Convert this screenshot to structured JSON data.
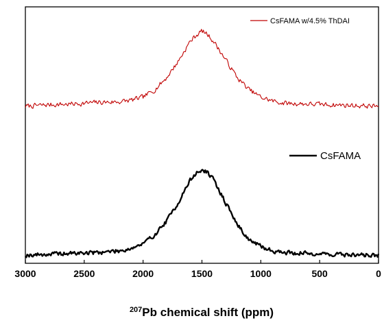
{
  "chart_data": {
    "type": "line",
    "xlabel_sup": "207",
    "xlabel_main": "Pb chemical shift (ppm)",
    "xlim": [
      3000,
      0
    ],
    "x_reversed": true,
    "xticks": [
      "3000",
      "2500",
      "2000",
      "1500",
      "1000",
      "500",
      "0"
    ],
    "y_ticks_shown": false,
    "grid": false,
    "series": [
      {
        "name": "CsFAMA w/4.5% ThDAI",
        "color": "#c00000",
        "legend_position": "top-right",
        "baseline": 0.0,
        "noise": 0.045,
        "x": [
          3000,
          2800,
          2600,
          2400,
          2200,
          2100,
          2000,
          1900,
          1800,
          1700,
          1600,
          1550,
          1500,
          1450,
          1400,
          1300,
          1200,
          1100,
          1000,
          900,
          800,
          600,
          400,
          200,
          0
        ],
        "y": [
          0.0,
          0.02,
          0.03,
          0.05,
          0.06,
          0.08,
          0.12,
          0.22,
          0.38,
          0.6,
          0.86,
          0.94,
          1.0,
          0.95,
          0.86,
          0.62,
          0.38,
          0.22,
          0.12,
          0.07,
          0.04,
          0.03,
          0.02,
          0.01,
          0.0
        ]
      },
      {
        "name": "CsFAMA",
        "color": "#000000",
        "legend_position": "middle-right",
        "baseline": 0.0,
        "noise": 0.035,
        "x": [
          3000,
          2800,
          2600,
          2400,
          2200,
          2100,
          2000,
          1900,
          1800,
          1700,
          1600,
          1550,
          1500,
          1450,
          1400,
          1300,
          1200,
          1100,
          1000,
          900,
          800,
          600,
          400,
          200,
          0
        ],
        "y": [
          0.0,
          0.01,
          0.02,
          0.03,
          0.05,
          0.08,
          0.13,
          0.24,
          0.4,
          0.62,
          0.88,
          0.96,
          1.0,
          0.97,
          0.88,
          0.62,
          0.36,
          0.18,
          0.1,
          0.05,
          0.03,
          0.02,
          0.01,
          0.0,
          0.0
        ]
      }
    ]
  }
}
